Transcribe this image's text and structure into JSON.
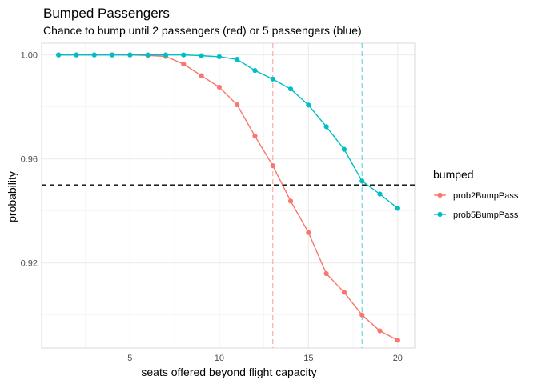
{
  "chart_data": {
    "type": "line",
    "title": "Bumped Passengers",
    "subtitle": "Chance to bump until 2 passengers (red) or 5 passengers (blue)",
    "xlabel": "seats offered beyond flight capacity",
    "ylabel": "probability",
    "xlim": [
      0.05,
      20.95
    ],
    "ylim": [
      0.8873,
      1.0045
    ],
    "x_ticks": [
      5,
      10,
      15,
      20
    ],
    "x_tick_labels": [
      "5",
      "10",
      "15",
      "20"
    ],
    "y_ticks": [
      0.92,
      0.96,
      1.0
    ],
    "y_tick_labels": [
      "0.92",
      "0.96",
      "1.00"
    ],
    "grid": true,
    "legend_position": "right",
    "legend_title": "bumped",
    "x": [
      1,
      2,
      3,
      4,
      5,
      6,
      7,
      8,
      9,
      10,
      11,
      12,
      13,
      14,
      15,
      16,
      17,
      18,
      19,
      20
    ],
    "series": [
      {
        "name": "prob2BumpPass",
        "color": "#F8766D",
        "values": [
          1.0,
          1.0,
          1.0,
          1.0,
          1.0,
          0.9998,
          0.9994,
          0.9965,
          0.992,
          0.9876,
          0.9808,
          0.9688,
          0.9574,
          0.9438,
          0.9317,
          0.9159,
          0.9087,
          0.9,
          0.8939,
          0.8903
        ]
      },
      {
        "name": "prob5BumpPass",
        "color": "#00BFC4",
        "values": [
          1.0,
          1.0,
          1.0,
          1.0,
          1.0,
          1.0,
          1.0,
          1.0,
          0.9997,
          0.9993,
          0.9983,
          0.994,
          0.9907,
          0.9869,
          0.9807,
          0.9724,
          0.9637,
          0.9515,
          0.9465,
          0.941
        ]
      }
    ],
    "reference_lines": [
      {
        "orientation": "horizontal",
        "value": 0.95,
        "color": "#000000",
        "style": "dashed"
      },
      {
        "orientation": "vertical",
        "value": 13,
        "color": "#F8766D",
        "style": "dashed"
      },
      {
        "orientation": "vertical",
        "value": 18,
        "color": "#00BFC4",
        "style": "dashed"
      }
    ]
  }
}
